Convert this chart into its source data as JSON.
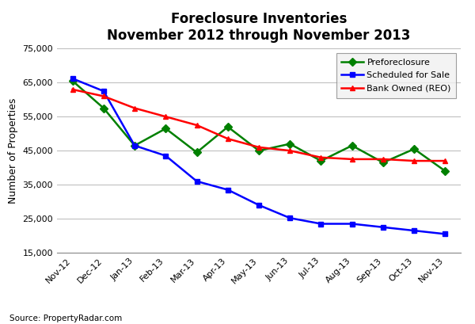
{
  "title": "Foreclosure Inventories\nNovember 2012 through November 2013",
  "ylabel": "Number of Properties",
  "source": "Source: PropertyRadar.com",
  "categories": [
    "Nov-12",
    "Dec-12",
    "Jan-13",
    "Feb-13",
    "Mar-13",
    "Apr-13",
    "May-13",
    "Jun-13",
    "Jul-13",
    "Aug-13",
    "Sep-13",
    "Oct-13",
    "Nov-13"
  ],
  "preforeclosure": [
    65500,
    57500,
    46500,
    51500,
    44500,
    52000,
    45000,
    47000,
    42000,
    46500,
    41500,
    45500,
    39000
  ],
  "scheduled_for_sale": [
    66200,
    62500,
    46500,
    43500,
    36000,
    33500,
    29000,
    25200,
    23500,
    23500,
    22500,
    21500,
    20500
  ],
  "bank_owned": [
    63000,
    61000,
    57500,
    55000,
    52500,
    48500,
    46000,
    45000,
    43000,
    42500,
    42500,
    42000,
    42000
  ],
  "preforeclosure_color": "#008000",
  "scheduled_color": "#0000FF",
  "bank_owned_color": "#FF0000",
  "ylim": [
    15000,
    75000
  ],
  "yticks": [
    15000,
    25000,
    35000,
    45000,
    55000,
    65000,
    75000
  ],
  "background_color": "#ffffff",
  "grid_color": "#c0c0c0",
  "title_fontsize": 12,
  "label_fontsize": 9,
  "tick_fontsize": 8,
  "legend_fontsize": 8
}
